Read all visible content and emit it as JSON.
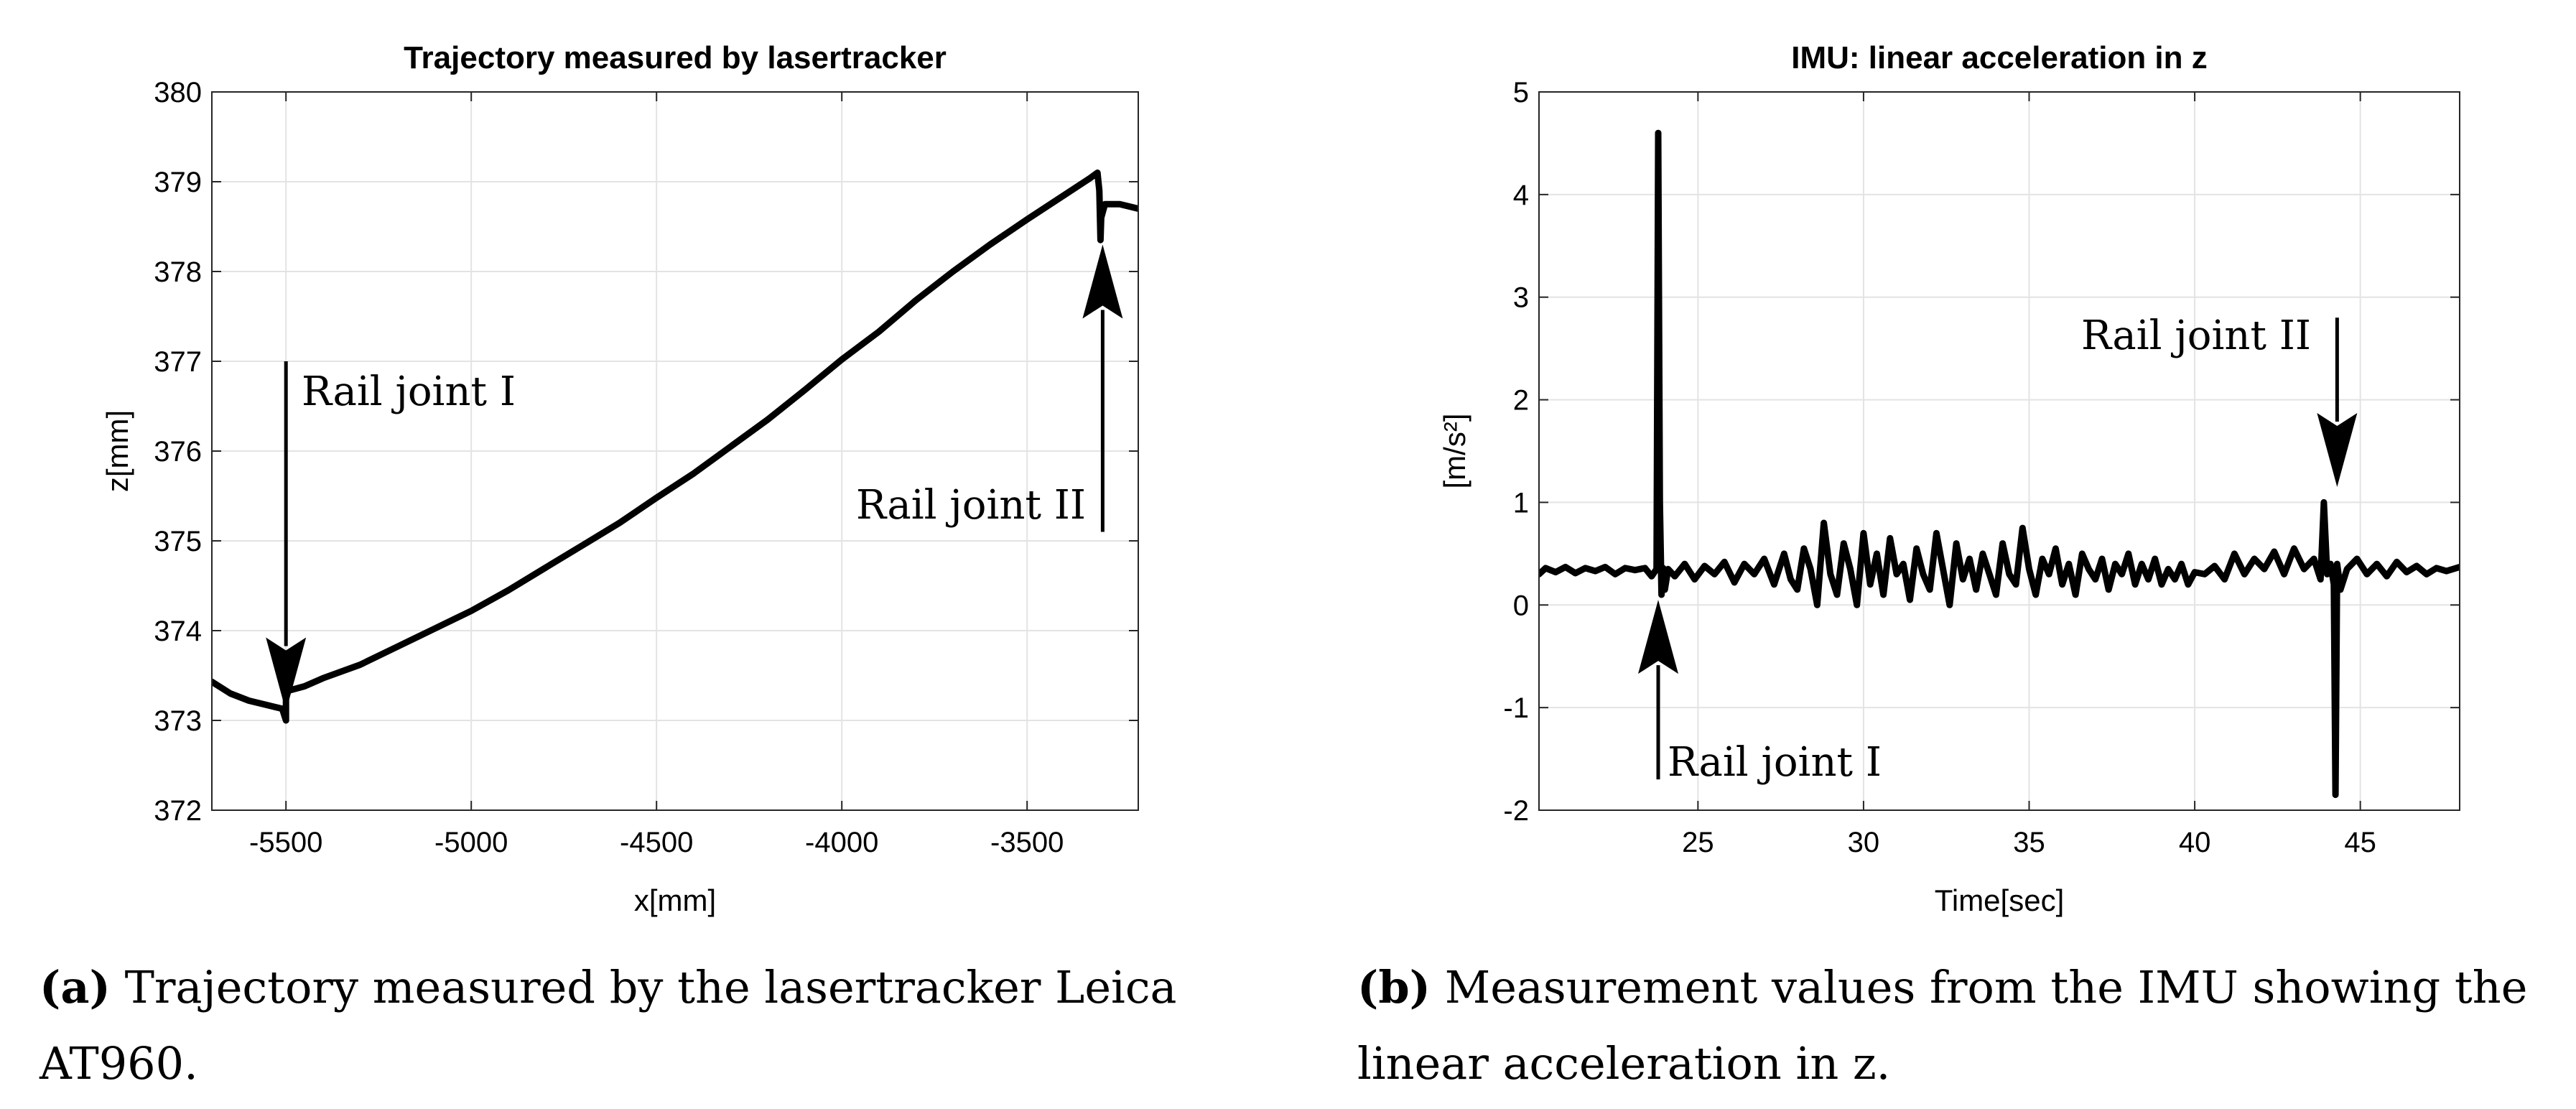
{
  "chart_data": [
    {
      "type": "line",
      "title": "Trajectory measured by lasertracker",
      "xlabel": "x[mm]",
      "ylabel": "z[mm]",
      "xlim": [
        -5700,
        -3200
      ],
      "ylim": [
        372,
        380
      ],
      "grid": true,
      "xticks": [
        -5500,
        -5000,
        -4500,
        -4000,
        -3500
      ],
      "xtick_labels": [
        "-5500",
        "-5000",
        "-4500",
        "-4000",
        "-3500"
      ],
      "yticks": [
        372,
        373,
        374,
        375,
        376,
        377,
        378,
        379,
        380
      ],
      "ytick_labels": [
        "372",
        "373",
        "374",
        "375",
        "376",
        "377",
        "378",
        "379",
        "380"
      ],
      "series": [
        {
          "name": "trajectory",
          "x": [
            -5700,
            -5650,
            -5600,
            -5550,
            -5510,
            -5500,
            -5500,
            -5495,
            -5450,
            -5400,
            -5300,
            -5200,
            -5100,
            -5000,
            -4900,
            -4800,
            -4700,
            -4600,
            -4500,
            -4400,
            -4300,
            -4200,
            -4100,
            -4000,
            -3900,
            -3800,
            -3700,
            -3600,
            -3500,
            -3400,
            -3330,
            -3310,
            -3305,
            -3302,
            -3300,
            -3290,
            -3250,
            -3200
          ],
          "y": [
            373.43,
            373.3,
            373.22,
            373.17,
            373.13,
            373.0,
            373.3,
            373.33,
            373.38,
            373.47,
            373.62,
            373.82,
            374.02,
            374.22,
            374.45,
            374.7,
            374.95,
            375.2,
            375.48,
            375.75,
            376.05,
            376.35,
            376.68,
            377.02,
            377.33,
            377.68,
            378.0,
            378.3,
            378.58,
            378.85,
            379.04,
            379.1,
            378.9,
            378.35,
            378.6,
            378.75,
            378.75,
            378.7
          ]
        }
      ],
      "annotations": [
        {
          "text": "Rail joint I",
          "arrow": "down",
          "x": -5500,
          "arrow_from_y": 377.0,
          "arrow_to_y": 373.1
        },
        {
          "text": "Rail joint II",
          "arrow": "up",
          "x": -3300,
          "arrow_from_y": 375.1,
          "arrow_to_y": 378.3
        }
      ]
    },
    {
      "type": "line",
      "title": "IMU: linear acceleration in z",
      "xlabel": "Time[sec]",
      "ylabel": "[m/s²]",
      "xlim": [
        20.2,
        48
      ],
      "ylim": [
        -2,
        5
      ],
      "grid": true,
      "xticks": [
        25,
        30,
        35,
        40,
        45
      ],
      "xtick_labels": [
        "25",
        "30",
        "35",
        "40",
        "45"
      ],
      "yticks": [
        -2,
        -1,
        0,
        1,
        2,
        3,
        4,
        5
      ],
      "ytick_labels": [
        "-2",
        "-1",
        "0",
        "1",
        "2",
        "3",
        "4",
        "5"
      ],
      "series": [
        {
          "name": "acceleration z",
          "x": [
            20.2,
            20.4,
            20.7,
            21.0,
            21.3,
            21.6,
            21.9,
            22.2,
            22.5,
            22.8,
            23.1,
            23.4,
            23.6,
            23.75,
            23.8,
            23.85,
            23.9,
            23.95,
            24.0,
            24.1,
            24.3,
            24.6,
            24.9,
            25.2,
            25.5,
            25.8,
            26.1,
            26.4,
            26.7,
            27.0,
            27.3,
            27.6,
            27.8,
            28.0,
            28.2,
            28.4,
            28.6,
            28.8,
            29.0,
            29.2,
            29.4,
            29.6,
            29.8,
            30.0,
            30.2,
            30.4,
            30.6,
            30.8,
            31.0,
            31.2,
            31.4,
            31.6,
            31.8,
            32.0,
            32.2,
            32.4,
            32.6,
            32.8,
            33.0,
            33.2,
            33.4,
            33.6,
            33.8,
            34.0,
            34.2,
            34.4,
            34.6,
            34.8,
            35.0,
            35.2,
            35.4,
            35.6,
            35.8,
            36.0,
            36.2,
            36.4,
            36.6,
            36.8,
            37.0,
            37.2,
            37.4,
            37.6,
            37.8,
            38.0,
            38.2,
            38.4,
            38.6,
            38.8,
            39.0,
            39.2,
            39.4,
            39.6,
            39.8,
            40.0,
            40.3,
            40.6,
            40.9,
            41.2,
            41.5,
            41.8,
            42.1,
            42.4,
            42.7,
            43.0,
            43.3,
            43.6,
            43.8,
            43.9,
            44.0,
            44.1,
            44.2,
            44.25,
            44.3,
            44.4,
            44.6,
            44.9,
            45.2,
            45.5,
            45.8,
            46.1,
            46.4,
            46.7,
            47.0,
            47.3,
            47.6,
            48.0
          ],
          "y": [
            0.3,
            0.36,
            0.32,
            0.37,
            0.31,
            0.36,
            0.33,
            0.37,
            0.3,
            0.36,
            0.34,
            0.36,
            0.28,
            0.35,
            4.6,
            1.0,
            0.1,
            0.36,
            0.15,
            0.35,
            0.28,
            0.4,
            0.25,
            0.38,
            0.3,
            0.42,
            0.22,
            0.4,
            0.3,
            0.45,
            0.2,
            0.5,
            0.25,
            0.15,
            0.55,
            0.35,
            0.0,
            0.8,
            0.3,
            0.1,
            0.6,
            0.35,
            0.0,
            0.7,
            0.2,
            0.5,
            0.1,
            0.65,
            0.3,
            0.4,
            0.05,
            0.55,
            0.3,
            0.15,
            0.7,
            0.35,
            0.0,
            0.6,
            0.25,
            0.45,
            0.15,
            0.5,
            0.3,
            0.1,
            0.6,
            0.3,
            0.2,
            0.75,
            0.35,
            0.1,
            0.45,
            0.3,
            0.55,
            0.2,
            0.4,
            0.1,
            0.5,
            0.35,
            0.25,
            0.45,
            0.15,
            0.4,
            0.3,
            0.5,
            0.2,
            0.4,
            0.25,
            0.45,
            0.2,
            0.35,
            0.25,
            0.4,
            0.2,
            0.32,
            0.3,
            0.38,
            0.25,
            0.5,
            0.3,
            0.45,
            0.35,
            0.52,
            0.3,
            0.55,
            0.35,
            0.45,
            0.25,
            1.0,
            0.3,
            0.4,
            0.2,
            -1.85,
            0.4,
            0.15,
            0.35,
            0.45,
            0.3,
            0.4,
            0.28,
            0.42,
            0.32,
            0.38,
            0.3,
            0.36,
            0.33,
            0.37
          ]
        }
      ],
      "annotations": [
        {
          "text": "Rail joint I",
          "arrow": "up",
          "x": 23.8,
          "arrow_from_y": -1.7,
          "arrow_to_y": 0.05
        },
        {
          "text": "Rail joint II",
          "arrow": "down",
          "x": 44.3,
          "arrow_from_y": 2.8,
          "arrow_to_y": 1.15
        }
      ]
    }
  ],
  "captions": [
    {
      "label": "(a)",
      "text": "Trajectory measured by the lasertracker Leica AT960."
    },
    {
      "label": "(b)",
      "text": "Measurement values from the IMU showing the linear acceleration in z."
    }
  ]
}
